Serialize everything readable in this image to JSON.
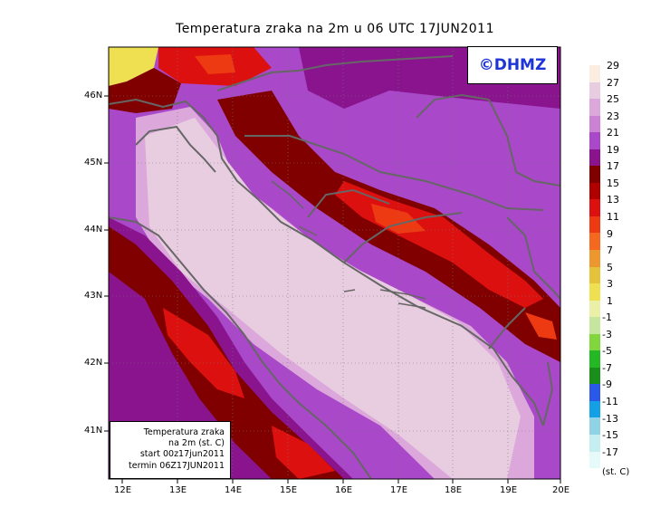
{
  "title": "Temperatura zraka na 2m u 06 UTC 17JUN2011",
  "logo": "©DHMZ",
  "lat_labels": [
    "46N",
    "45N",
    "44N",
    "43N",
    "42N",
    "41N"
  ],
  "lon_labels": [
    "12E",
    "13E",
    "14E",
    "15E",
    "16E",
    "17E",
    "18E",
    "19E",
    "20E"
  ],
  "info_box": {
    "line1": "Temperatura zraka",
    "line2": "na 2m (st. C)",
    "line3": "start 00z17jun2011",
    "line4": "termin 06Z17JUN2011"
  },
  "colorbar": {
    "labels": [
      "29",
      "27",
      "25",
      "23",
      "21",
      "19",
      "17",
      "15",
      "13",
      "11",
      "9",
      "7",
      "5",
      "3",
      "1",
      "-1",
      "-3",
      "-5",
      "-7",
      "-9",
      "-11",
      "-13",
      "-15",
      "-17"
    ],
    "colors": [
      "#fbeee0",
      "#e8cce0",
      "#dca8dc",
      "#cc82d4",
      "#a948c8",
      "#8a148e",
      "#800000",
      "#b00000",
      "#dd1010",
      "#ee3a12",
      "#f46820",
      "#ed982e",
      "#e4c33a",
      "#eee050",
      "#eaf0a8",
      "#c6e6a0",
      "#80d63c",
      "#24b824",
      "#1a8e1a",
      "#2a58e8",
      "#14a0e4",
      "#90d2e6",
      "#c4eef0",
      "#e6fafa"
    ],
    "unit": "(st. C)"
  },
  "map_colors": {
    "warm": "#a948c8",
    "mid": "#8a148e",
    "cool": "#dca8dc",
    "hot": "#dd1010",
    "veryhot": "#ee3a12",
    "coast": "#666666"
  }
}
